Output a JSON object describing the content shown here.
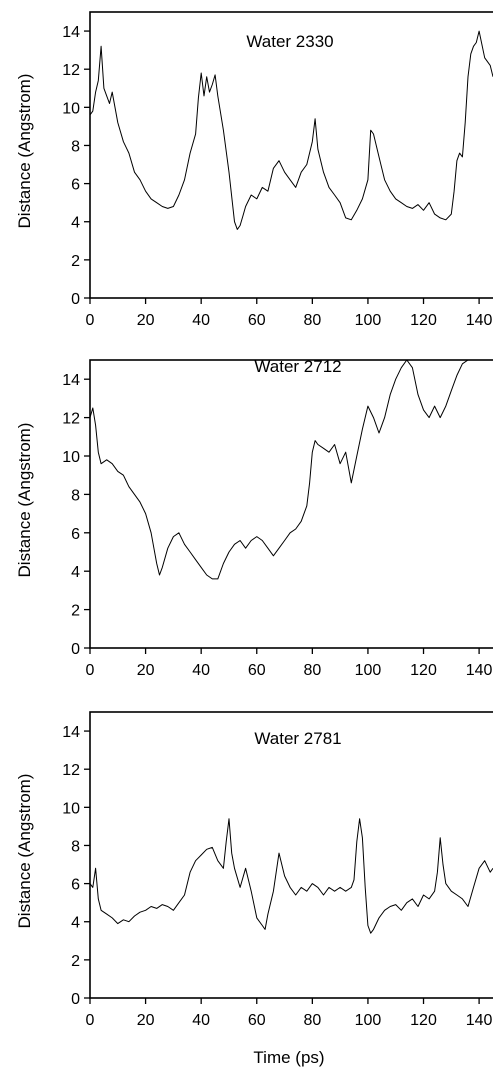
{
  "figure": {
    "xlabel": "Time (ps)"
  },
  "chart_data": [
    {
      "type": "line",
      "title": "Water 2330",
      "xlabel": "",
      "ylabel": "Distance (Angstrom)",
      "xlim": [
        0,
        145
      ],
      "ylim": [
        0,
        15
      ],
      "xticks": [
        0,
        20,
        40,
        60,
        80,
        100,
        120,
        140
      ],
      "yticks": [
        0,
        2,
        4,
        6,
        8,
        10,
        12,
        14
      ],
      "grid": false,
      "series": [
        {
          "x": [
            0,
            1,
            2,
            3,
            4,
            5,
            6,
            7,
            8,
            10,
            12,
            14,
            16,
            18,
            20,
            22,
            24,
            26,
            28,
            30,
            32,
            34,
            36,
            38,
            39,
            40,
            41,
            42,
            43,
            44,
            45,
            46,
            48,
            50,
            52,
            53,
            54,
            55,
            56,
            58,
            60,
            62,
            64,
            66,
            68,
            70,
            72,
            74,
            76,
            78,
            80,
            81,
            82,
            84,
            86,
            88,
            90,
            92,
            94,
            96,
            98,
            100,
            101,
            102,
            104,
            106,
            108,
            110,
            112,
            114,
            116,
            118,
            120,
            122,
            124,
            126,
            128,
            130,
            131,
            132,
            133,
            134,
            135,
            136,
            137,
            138,
            139,
            140,
            142,
            144,
            145
          ],
          "y": [
            9.6,
            9.8,
            10.8,
            11.4,
            13.2,
            11.0,
            10.6,
            10.2,
            10.8,
            9.2,
            8.2,
            7.6,
            6.6,
            6.2,
            5.6,
            5.2,
            5.0,
            4.8,
            4.7,
            4.8,
            5.4,
            6.2,
            7.6,
            8.6,
            10.5,
            11.8,
            10.6,
            11.6,
            10.8,
            11.2,
            11.7,
            10.6,
            8.8,
            6.6,
            4.0,
            3.6,
            3.8,
            4.3,
            4.8,
            5.4,
            5.2,
            5.8,
            5.6,
            6.8,
            7.2,
            6.6,
            6.2,
            5.8,
            6.6,
            7.0,
            8.2,
            9.4,
            7.8,
            6.6,
            5.8,
            5.4,
            5.0,
            4.2,
            4.1,
            4.6,
            5.2,
            6.2,
            8.8,
            8.6,
            7.4,
            6.2,
            5.6,
            5.2,
            5.0,
            4.8,
            4.7,
            4.9,
            4.6,
            5.0,
            4.4,
            4.2,
            4.1,
            4.4,
            5.6,
            7.2,
            7.6,
            7.4,
            9.2,
            11.6,
            12.8,
            13.2,
            13.4,
            14.0,
            12.6,
            12.2,
            11.6
          ]
        }
      ]
    },
    {
      "type": "line",
      "title": "Water 2712",
      "xlabel": "",
      "ylabel": "Distance (Angstrom)",
      "xlim": [
        0,
        145
      ],
      "ylim": [
        0,
        15
      ],
      "xticks": [
        0,
        20,
        40,
        60,
        80,
        100,
        120,
        140
      ],
      "yticks": [
        0,
        2,
        4,
        6,
        8,
        10,
        12,
        14
      ],
      "grid": false,
      "series": [
        {
          "x": [
            0,
            1,
            2,
            3,
            4,
            6,
            8,
            10,
            12,
            14,
            16,
            18,
            20,
            22,
            23,
            24,
            25,
            26,
            28,
            30,
            32,
            34,
            36,
            38,
            40,
            42,
            44,
            46,
            48,
            50,
            52,
            54,
            56,
            58,
            60,
            62,
            64,
            66,
            68,
            70,
            72,
            74,
            76,
            78,
            79,
            80,
            81,
            82,
            84,
            86,
            88,
            90,
            92,
            94,
            96,
            98,
            100,
            102,
            104,
            106,
            108,
            110,
            112,
            114,
            116,
            118,
            120,
            122,
            124,
            126,
            128,
            130,
            132,
            134,
            136,
            138,
            140
          ],
          "y": [
            12.0,
            12.5,
            11.6,
            10.2,
            9.6,
            9.8,
            9.6,
            9.2,
            9.0,
            8.4,
            8.0,
            7.6,
            7.0,
            6.0,
            5.2,
            4.4,
            3.8,
            4.2,
            5.2,
            5.8,
            6.0,
            5.4,
            5.0,
            4.6,
            4.2,
            3.8,
            3.6,
            3.6,
            4.4,
            5.0,
            5.4,
            5.6,
            5.2,
            5.6,
            5.8,
            5.6,
            5.2,
            4.8,
            5.2,
            5.6,
            6.0,
            6.2,
            6.6,
            7.4,
            8.6,
            10.2,
            10.8,
            10.6,
            10.4,
            10.2,
            10.6,
            9.6,
            10.2,
            8.6,
            10.0,
            11.4,
            12.6,
            12.0,
            11.2,
            12.0,
            13.2,
            14.0,
            14.6,
            15.0,
            14.6,
            13.2,
            12.4,
            12.0,
            12.6,
            12.0,
            12.6,
            13.4,
            14.2,
            14.8,
            15.0,
            15.0,
            15.0
          ]
        }
      ]
    },
    {
      "type": "line",
      "title": "Water 2781",
      "xlabel": "Time (ps)",
      "ylabel": "Distance (Angstrom)",
      "xlim": [
        0,
        145
      ],
      "ylim": [
        0,
        15
      ],
      "xticks": [
        0,
        20,
        40,
        60,
        80,
        100,
        120,
        140
      ],
      "yticks": [
        0,
        2,
        4,
        6,
        8,
        10,
        12,
        14
      ],
      "grid": false,
      "series": [
        {
          "x": [
            0,
            1,
            2,
            3,
            4,
            6,
            8,
            10,
            12,
            14,
            16,
            18,
            20,
            22,
            24,
            26,
            28,
            30,
            32,
            34,
            36,
            38,
            40,
            42,
            44,
            46,
            48,
            49,
            50,
            51,
            52,
            54,
            56,
            58,
            60,
            62,
            63,
            64,
            66,
            68,
            70,
            72,
            74,
            76,
            78,
            80,
            82,
            84,
            86,
            88,
            90,
            92,
            94,
            95,
            96,
            97,
            98,
            99,
            100,
            101,
            102,
            104,
            106,
            108,
            110,
            112,
            114,
            116,
            118,
            120,
            122,
            124,
            125,
            126,
            127,
            128,
            130,
            132,
            134,
            136,
            138,
            140,
            142,
            144,
            145
          ],
          "y": [
            6.0,
            5.8,
            6.8,
            5.2,
            4.6,
            4.4,
            4.2,
            3.9,
            4.1,
            4.0,
            4.3,
            4.5,
            4.6,
            4.8,
            4.7,
            4.9,
            4.8,
            4.6,
            5.0,
            5.4,
            6.6,
            7.2,
            7.5,
            7.8,
            7.9,
            7.2,
            6.8,
            8.2,
            9.4,
            7.6,
            6.8,
            5.8,
            6.8,
            5.6,
            4.2,
            3.8,
            3.6,
            4.4,
            5.6,
            7.6,
            6.4,
            5.8,
            5.4,
            5.8,
            5.6,
            6.0,
            5.8,
            5.4,
            5.8,
            5.6,
            5.8,
            5.6,
            5.8,
            6.2,
            8.2,
            9.4,
            8.4,
            5.8,
            3.8,
            3.4,
            3.6,
            4.2,
            4.6,
            4.8,
            4.9,
            4.6,
            5.0,
            5.2,
            4.8,
            5.4,
            5.2,
            5.6,
            6.6,
            8.4,
            7.0,
            6.0,
            5.6,
            5.4,
            5.2,
            4.8,
            5.8,
            6.8,
            7.2,
            6.6,
            6.8
          ]
        }
      ]
    }
  ]
}
